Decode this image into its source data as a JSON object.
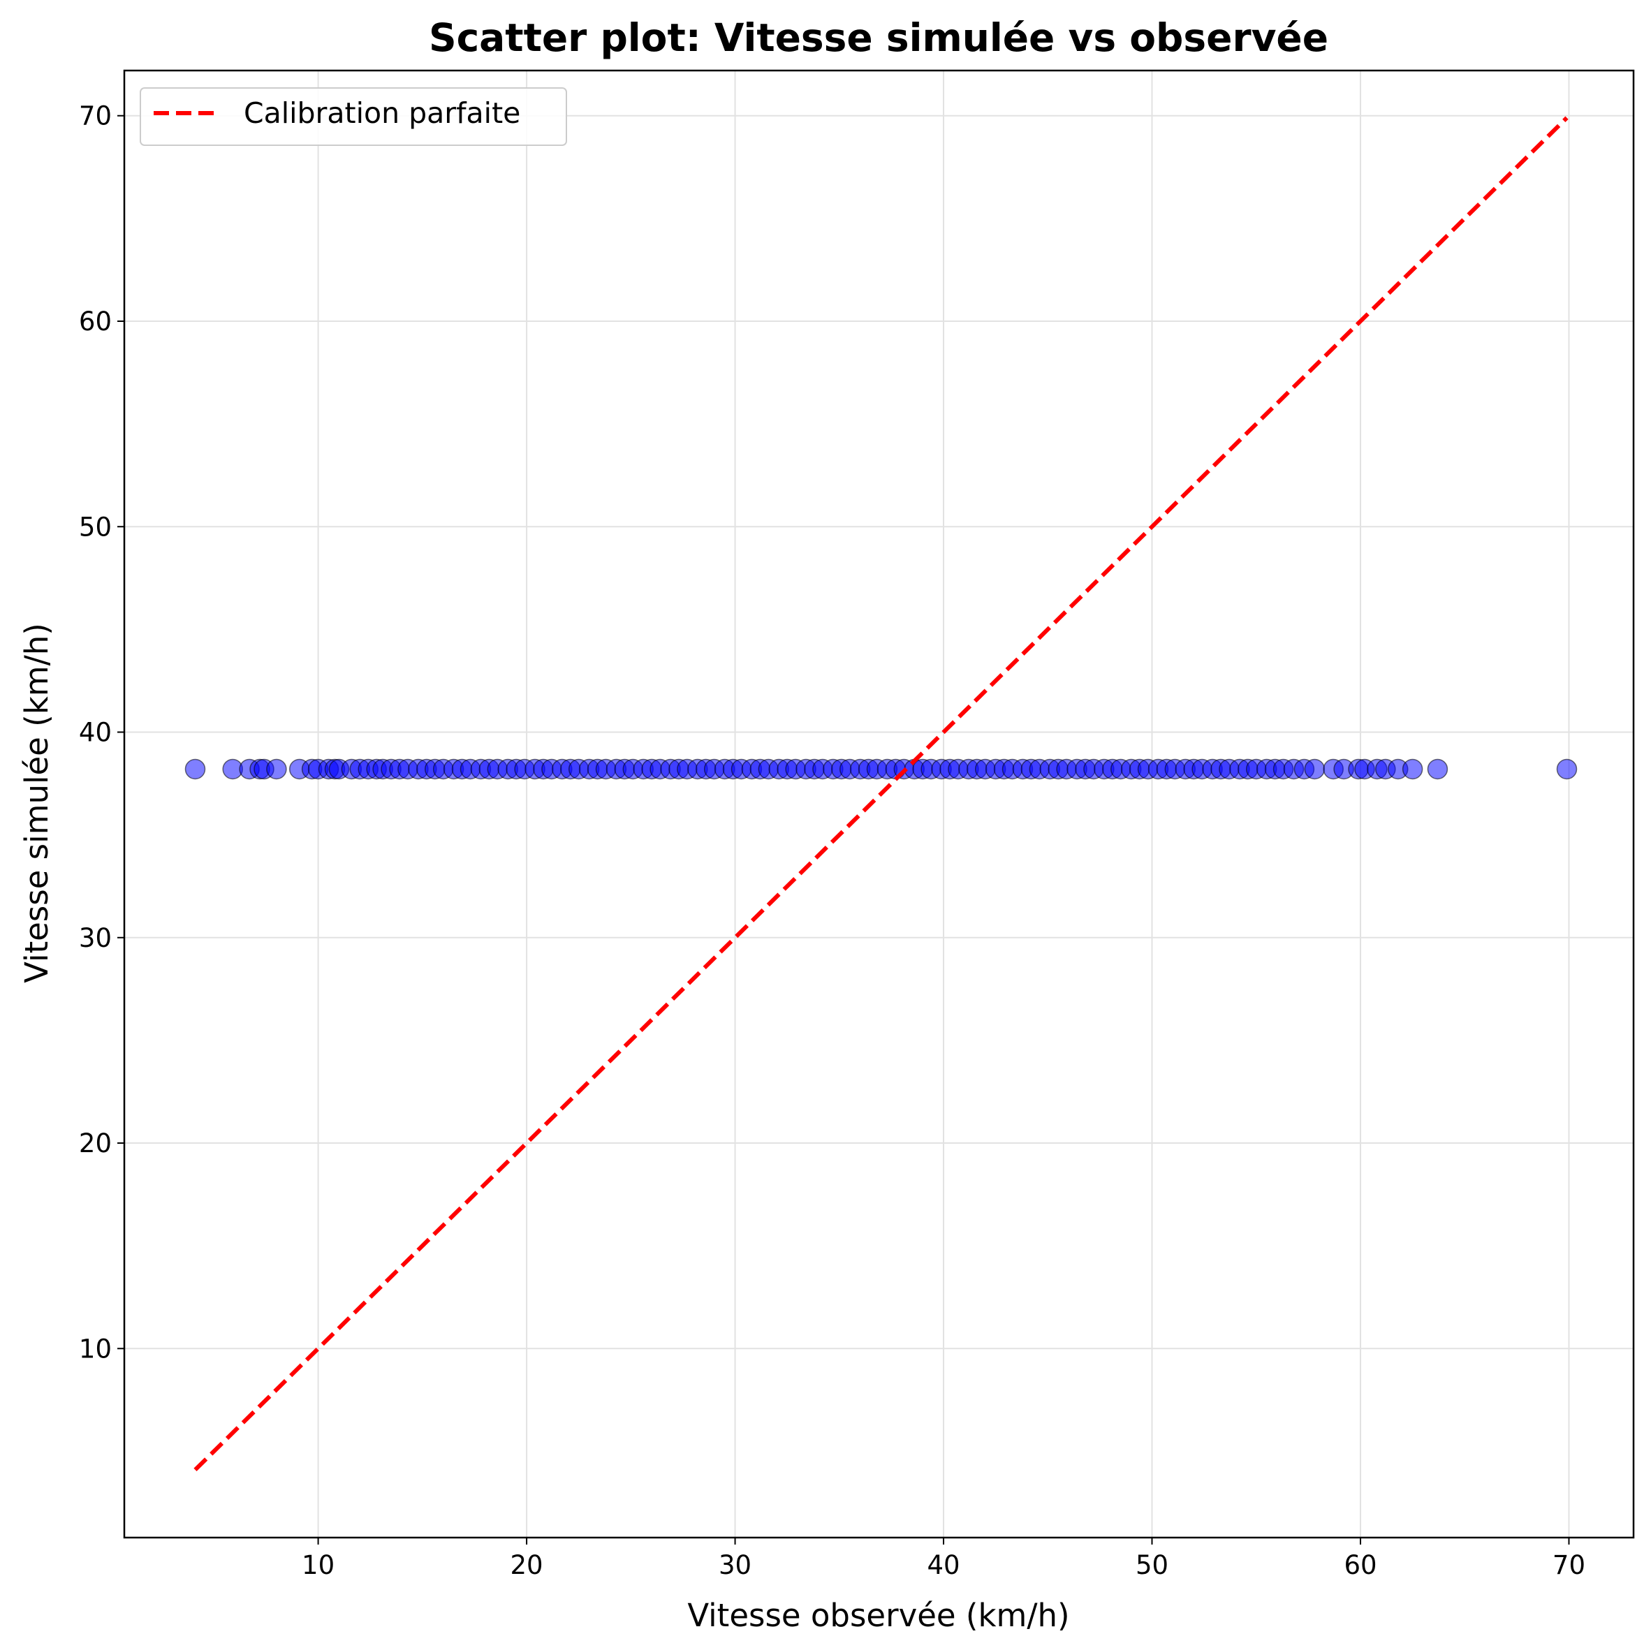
{
  "chart_data": {
    "type": "scatter",
    "title": "Scatter plot: Vitesse simulée vs observée",
    "xlabel": "Vitesse observée (km/h)",
    "ylabel": "Vitesse simulée (km/h)",
    "xlim": [
      0.7,
      73.1
    ],
    "ylim": [
      0.8,
      72.2
    ],
    "xticks": [
      10,
      20,
      30,
      40,
      50,
      60,
      70
    ],
    "yticks": [
      10,
      20,
      30,
      40,
      50,
      60,
      70
    ],
    "grid": true,
    "legend": {
      "position": "top-left",
      "entries": [
        "Calibration parfaite"
      ]
    },
    "series": [
      {
        "type": "scatter",
        "color": "#0000ff",
        "opacity": 0.5,
        "edgecolor": "#000000",
        "x": [
          4.1,
          5.9,
          6.7,
          7.2,
          7.4,
          8.0,
          9.1,
          9.7,
          10.0,
          10.5,
          10.8,
          11.0,
          11.6,
          12.0,
          12.4,
          12.8,
          13.1,
          13.5,
          13.9,
          14.3,
          14.8,
          15.2,
          15.6,
          16.0,
          16.5,
          16.9,
          17.3,
          17.8,
          18.2,
          18.6,
          19.1,
          19.5,
          19.9,
          20.4,
          20.8,
          21.2,
          21.7,
          22.1,
          22.5,
          23.0,
          23.4,
          23.8,
          24.3,
          24.7,
          25.1,
          25.6,
          26.0,
          26.4,
          26.9,
          27.3,
          27.7,
          28.2,
          28.6,
          29.0,
          29.5,
          29.9,
          30.3,
          30.8,
          31.2,
          31.6,
          32.1,
          32.5,
          32.9,
          33.4,
          33.8,
          34.2,
          34.7,
          35.1,
          35.5,
          36.0,
          36.4,
          36.8,
          37.3,
          37.7,
          38.1,
          38.6,
          39.0,
          39.4,
          39.9,
          40.3,
          40.7,
          41.2,
          41.6,
          42.0,
          42.5,
          42.9,
          43.3,
          43.8,
          44.2,
          44.6,
          45.1,
          45.5,
          45.9,
          46.4,
          46.8,
          47.2,
          47.7,
          48.1,
          48.5,
          49.0,
          49.4,
          49.8,
          50.3,
          50.7,
          51.1,
          51.6,
          52.0,
          52.4,
          52.9,
          53.3,
          53.7,
          54.2,
          54.6,
          55.0,
          55.5,
          55.9,
          56.3,
          56.8,
          57.3,
          57.8,
          58.7,
          59.2,
          59.9,
          60.2,
          60.8,
          61.2,
          61.8,
          62.5,
          63.7,
          69.9
        ],
        "y": [
          38.2,
          38.2,
          38.2,
          38.2,
          38.2,
          38.2,
          38.2,
          38.2,
          38.2,
          38.2,
          38.2,
          38.2,
          38.2,
          38.2,
          38.2,
          38.2,
          38.2,
          38.2,
          38.2,
          38.2,
          38.2,
          38.2,
          38.2,
          38.2,
          38.2,
          38.2,
          38.2,
          38.2,
          38.2,
          38.2,
          38.2,
          38.2,
          38.2,
          38.2,
          38.2,
          38.2,
          38.2,
          38.2,
          38.2,
          38.2,
          38.2,
          38.2,
          38.2,
          38.2,
          38.2,
          38.2,
          38.2,
          38.2,
          38.2,
          38.2,
          38.2,
          38.2,
          38.2,
          38.2,
          38.2,
          38.2,
          38.2,
          38.2,
          38.2,
          38.2,
          38.2,
          38.2,
          38.2,
          38.2,
          38.2,
          38.2,
          38.2,
          38.2,
          38.2,
          38.2,
          38.2,
          38.2,
          38.2,
          38.2,
          38.2,
          38.2,
          38.2,
          38.2,
          38.2,
          38.2,
          38.2,
          38.2,
          38.2,
          38.2,
          38.2,
          38.2,
          38.2,
          38.2,
          38.2,
          38.2,
          38.2,
          38.2,
          38.2,
          38.2,
          38.2,
          38.2,
          38.2,
          38.2,
          38.2,
          38.2,
          38.2,
          38.2,
          38.2,
          38.2,
          38.2,
          38.2,
          38.2,
          38.2,
          38.2,
          38.2,
          38.2,
          38.2,
          38.2,
          38.2,
          38.2,
          38.2,
          38.2,
          38.2,
          38.2,
          38.2,
          38.2,
          38.2,
          38.2,
          38.2,
          38.2,
          38.2,
          38.2,
          38.2,
          38.2,
          38.2
        ]
      },
      {
        "type": "line",
        "name": "Calibration parfaite",
        "color": "#ff0000",
        "linestyle": "dashed",
        "x": [
          4.1,
          69.9
        ],
        "y": [
          4.1,
          69.9
        ]
      }
    ]
  }
}
